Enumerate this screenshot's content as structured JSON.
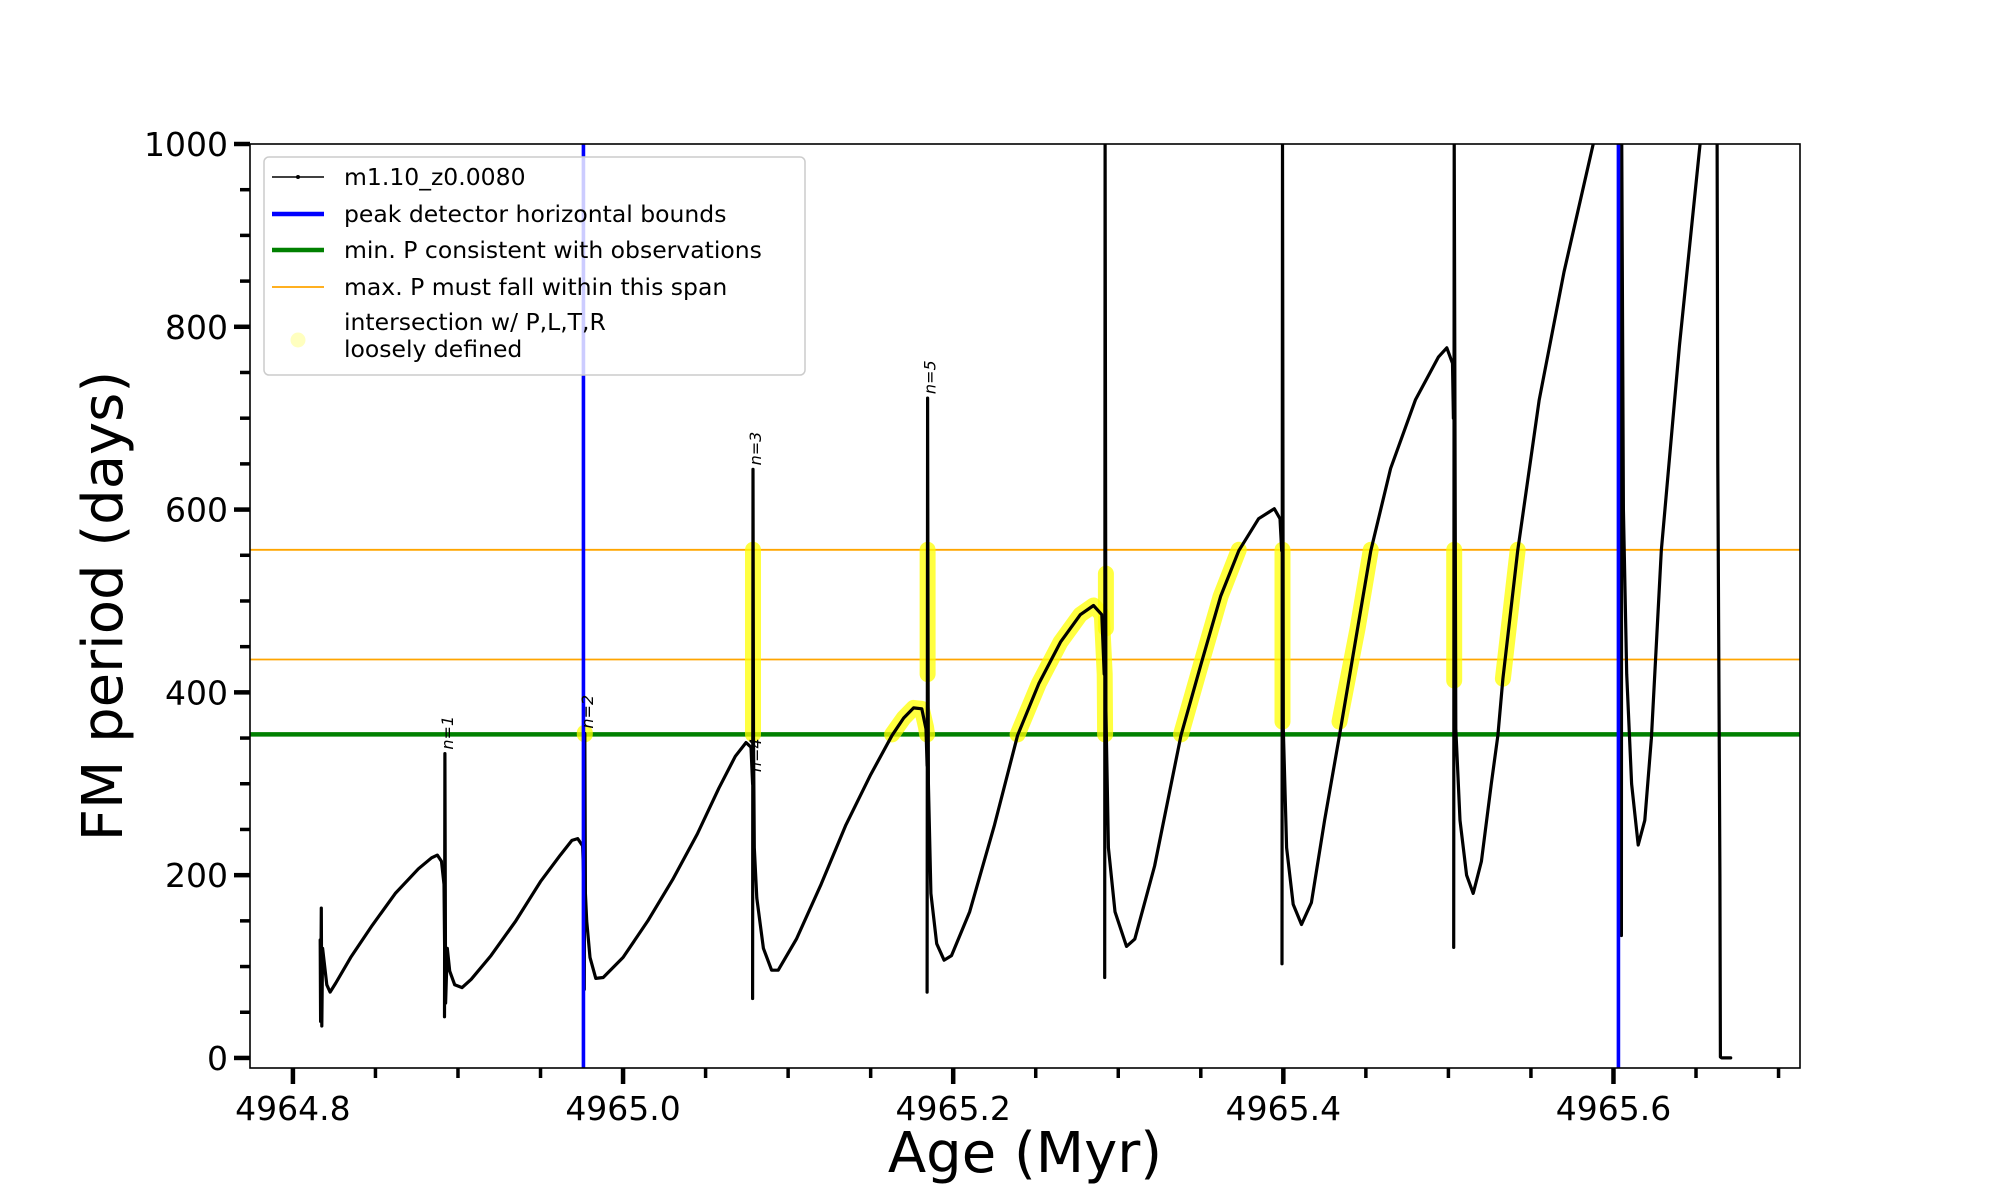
{
  "chart_data": {
    "type": "line",
    "title": "",
    "xlabel": "Age (Myr)",
    "ylabel": "FM period (days)",
    "xlim": [
      4964.774,
      4965.713
    ],
    "ylim": [
      -11,
      1000
    ],
    "xticks_major": [
      4964.8,
      4965.0,
      4965.2,
      4965.4,
      4965.6
    ],
    "xtick_labels": [
      "4964.8",
      "4965.0",
      "4965.2",
      "4965.4",
      "4965.6"
    ],
    "xticks_minor_step": 0.05,
    "yticks_major": [
      0,
      200,
      400,
      600,
      800,
      1000
    ],
    "ytick_labels": [
      "0",
      "200",
      "400",
      "600",
      "800",
      "1000"
    ],
    "yticks_minor_step": 50,
    "grid": false,
    "legend_position": "top-left",
    "legend": [
      {
        "label": "m1.10_z0.0080",
        "kind": "line-marker",
        "color": "#000000"
      },
      {
        "label": "peak detector horizontal bounds",
        "kind": "line-thick",
        "color": "#0000ff"
      },
      {
        "label": "min. P consistent with observations",
        "kind": "line-thick",
        "color": "#008000"
      },
      {
        "label": "max. P must fall within this span",
        "kind": "line-thin",
        "color": "#ffa500"
      },
      {
        "label": "intersection w/ P,L,T,R\nloosely defined",
        "kind": "dot",
        "color": "#ffff00"
      }
    ],
    "series": [
      {
        "name": "m1.10_z0.0080",
        "color": "#000000",
        "segments": [
          [
            [
              4964.8165,
              129
            ],
            [
              4964.8168,
              40
            ],
            [
              4964.8172,
              164
            ],
            [
              4964.8175,
              35
            ],
            [
              4964.818,
              120
            ],
            [
              4964.8205,
              80
            ],
            [
              4964.8225,
              72
            ],
            [
              4964.826,
              82
            ],
            [
              4964.835,
              110
            ],
            [
              4964.848,
              145
            ],
            [
              4964.862,
              180
            ],
            [
              4964.876,
              207
            ],
            [
              4964.884,
              219
            ],
            [
              4964.8875,
              222
            ],
            [
              4964.89,
              215
            ],
            [
              4964.8915,
              190
            ],
            [
              4964.892,
              100
            ]
          ],
          [
            [
              4964.8918,
              45
            ],
            [
              4964.8921,
              333
            ],
            [
              4964.8925,
              60
            ],
            [
              4964.8935,
              120
            ],
            [
              4964.895,
              95
            ],
            [
              4964.898,
              80
            ],
            [
              4964.9025,
              77
            ],
            [
              4964.908,
              86
            ],
            [
              4964.92,
              112
            ],
            [
              4964.935,
              150
            ],
            [
              4964.95,
              193
            ],
            [
              4964.962,
              222
            ],
            [
              4964.969,
              238
            ],
            [
              4964.9725,
              240
            ],
            [
              4964.9755,
              232
            ],
            [
              4964.9765,
              180
            ]
          ],
          [
            [
              4964.9765,
              75
            ],
            [
              4964.9768,
              355
            ],
            [
              4964.9772,
              180
            ],
            [
              4964.978,
              150
            ],
            [
              4964.98,
              110
            ],
            [
              4964.9835,
              87
            ],
            [
              4964.988,
              88
            ],
            [
              4965.0,
              110
            ],
            [
              4965.015,
              150
            ],
            [
              4965.03,
              195
            ],
            [
              4965.045,
              245
            ],
            [
              4965.058,
              295
            ],
            [
              4965.068,
              330
            ],
            [
              4965.0745,
              345
            ],
            [
              4965.0775,
              340
            ],
            [
              4965.0785,
              300
            ]
          ],
          [
            [
              4965.0785,
              65
            ],
            [
              4965.0787,
              644
            ],
            [
              4965.079,
              350
            ],
            [
              4965.0795,
              230
            ],
            [
              4965.081,
              175
            ],
            [
              4965.085,
              120
            ],
            [
              4965.09,
              96
            ],
            [
              4965.094,
              96
            ],
            [
              4965.105,
              130
            ],
            [
              4965.12,
              190
            ],
            [
              4965.135,
              255
            ],
            [
              4965.15,
              310
            ],
            [
              4965.163,
              353
            ],
            [
              4965.17,
              372
            ],
            [
              4965.176,
              383
            ],
            [
              4965.181,
              382
            ],
            [
              4965.1835,
              360
            ],
            [
              4965.1842,
              320
            ]
          ],
          [
            [
              4965.1842,
              72
            ],
            [
              4965.1845,
              722
            ],
            [
              4965.1848,
              420
            ],
            [
              4965.185,
              300
            ],
            [
              4965.1865,
              180
            ],
            [
              4965.19,
              125
            ],
            [
              4965.1945,
              107
            ],
            [
              4965.199,
              112
            ],
            [
              4965.21,
              160
            ],
            [
              4965.225,
              255
            ],
            [
              4965.239,
              353
            ],
            [
              4965.252,
              410
            ],
            [
              4965.265,
              455
            ],
            [
              4965.277,
              485
            ],
            [
              4965.285,
              495
            ],
            [
              4965.29,
              485
            ],
            [
              4965.2915,
              420
            ]
          ],
          [
            [
              4965.2918,
              88
            ],
            [
              4965.292,
              1010
            ],
            [
              4965.2925,
              380
            ],
            [
              4965.294,
              230
            ],
            [
              4965.298,
              160
            ],
            [
              4965.305,
              122
            ],
            [
              4965.31,
              130
            ],
            [
              4965.322,
              210
            ],
            [
              4965.338,
              353
            ],
            [
              4965.35,
              430
            ],
            [
              4965.362,
              505
            ],
            [
              4965.373,
              555
            ],
            [
              4965.385,
              590
            ],
            [
              4965.3945,
              601
            ],
            [
              4965.398,
              590
            ],
            [
              4965.399,
              555
            ]
          ],
          [
            [
              4965.3992,
              103
            ],
            [
              4965.3995,
              1010
            ],
            [
              4965.4,
              360
            ],
            [
              4965.402,
              230
            ],
            [
              4965.406,
              168
            ],
            [
              4965.411,
              146
            ],
            [
              4965.417,
              170
            ],
            [
              4965.425,
              260
            ],
            [
              4965.434,
              353
            ],
            [
              4965.445,
              470
            ],
            [
              4965.453,
              555
            ],
            [
              4965.465,
              645
            ],
            [
              4965.48,
              720
            ],
            [
              4965.494,
              767
            ],
            [
              4965.499,
              777
            ],
            [
              4965.5025,
              760
            ],
            [
              4965.503,
              700
            ]
          ],
          [
            [
              4965.5032,
              121
            ],
            [
              4965.5035,
              1010
            ],
            [
              4965.5045,
              360
            ],
            [
              4965.507,
              260
            ],
            [
              4965.511,
              200
            ],
            [
              4965.515,
              180
            ],
            [
              4965.52,
              215
            ],
            [
              4965.526,
              300
            ],
            [
              4965.53,
              353
            ],
            [
              4965.533,
              415
            ],
            [
              4965.542,
              555
            ],
            [
              4965.555,
              720
            ],
            [
              4965.57,
              860
            ],
            [
              4965.589,
              1010
            ]
          ],
          [
            [
              4965.6048,
              134
            ],
            [
              4965.605,
              1010
            ],
            [
              4965.606,
              600
            ],
            [
              4965.608,
              420
            ],
            [
              4965.611,
              300
            ],
            [
              4965.615,
              233
            ],
            [
              4965.619,
              260
            ],
            [
              4965.623,
              350
            ],
            [
              4965.629,
              555
            ],
            [
              4965.64,
              780
            ],
            [
              4965.653,
              1010
            ]
          ],
          [
            [
              4965.6628,
              1010
            ],
            [
              4965.6632,
              650
            ],
            [
              4965.664,
              375
            ],
            [
              4965.6645,
              200
            ],
            [
              4965.6648,
              1
            ],
            [
              4965.6655,
              0
            ],
            [
              4965.671,
              0
            ]
          ]
        ]
      }
    ],
    "vertical_lines": [
      {
        "name": "peak detector horizontal bounds",
        "x": 4964.976,
        "color": "#0000ff"
      },
      {
        "name": "peak detector horizontal bounds",
        "x": 4965.603,
        "color": "#0000ff"
      }
    ],
    "horizontal_lines": [
      {
        "name": "min. P consistent with observations",
        "y": 354,
        "color": "#008000"
      },
      {
        "name": "max. P must fall within this span (lower)",
        "y": 436,
        "color": "#ffa500"
      },
      {
        "name": "max. P must fall within this span (upper)",
        "y": 556,
        "color": "#ffa500"
      }
    ],
    "intersections": {
      "color": "#ffff00",
      "segments": [
        [
          [
            4964.9768,
            354
          ],
          [
            4964.9768,
            356
          ]
        ],
        [
          [
            4965.0787,
            354
          ],
          [
            4965.0787,
            556
          ]
        ],
        [
          [
            4965.163,
            354
          ],
          [
            4965.17,
            372
          ],
          [
            4965.176,
            383
          ],
          [
            4965.181,
            382
          ],
          [
            4965.1835,
            362
          ],
          [
            4965.1842,
            354
          ]
        ],
        [
          [
            4965.1845,
            420
          ],
          [
            4965.1845,
            556
          ]
        ],
        [
          [
            4965.239,
            354
          ],
          [
            4965.252,
            410
          ],
          [
            4965.265,
            455
          ],
          [
            4965.277,
            485
          ],
          [
            4965.285,
            495
          ],
          [
            4965.29,
            485
          ],
          [
            4965.2918,
            420
          ],
          [
            4965.292,
            354
          ]
        ],
        [
          [
            4965.2925,
            470
          ],
          [
            4965.2925,
            530
          ]
        ],
        [
          [
            4965.338,
            354
          ],
          [
            4965.35,
            430
          ],
          [
            4965.362,
            505
          ],
          [
            4965.373,
            556
          ]
        ],
        [
          [
            4965.3995,
            368
          ],
          [
            4965.3995,
            556
          ]
        ],
        [
          [
            4965.434,
            368
          ],
          [
            4965.445,
            470
          ],
          [
            4965.453,
            556
          ]
        ],
        [
          [
            4965.5035,
            413
          ],
          [
            4965.5035,
            556
          ]
        ],
        [
          [
            4965.533,
            415
          ],
          [
            4965.542,
            556
          ]
        ]
      ]
    },
    "annotations": [
      {
        "text": "n=1",
        "x": 4964.8921,
        "y": 333,
        "rotation": -90
      },
      {
        "text": "n=2",
        "x": 4964.9768,
        "y": 356,
        "rotation": -90
      },
      {
        "text": "n=3",
        "x": 4965.0787,
        "y": 644,
        "rotation": -90
      },
      {
        "text": "n=4",
        "x": 4965.0787,
        "y": 354,
        "rotation": -90,
        "below": true
      },
      {
        "text": "n=5",
        "x": 4965.1845,
        "y": 722,
        "rotation": -90
      }
    ]
  }
}
